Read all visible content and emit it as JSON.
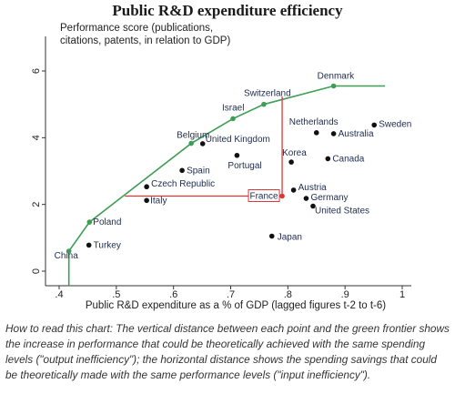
{
  "chart_data": {
    "type": "scatter",
    "title": "Public R&D expenditure efficiency",
    "ylabel": "Performance score (publications, citations, patents, in relation to GDP)",
    "xlabel": "Public R&D expenditure as a % of GDP (lagged figures t-2 to t-6)",
    "xlim": [
      0.4,
      1.0
    ],
    "ylim": [
      0,
      6
    ],
    "x_ticks": [
      ".4",
      ".5",
      ".6",
      ".7",
      ".8",
      ".9",
      "1"
    ],
    "y_ticks": [
      "0",
      "2",
      "4",
      "6"
    ],
    "colors": {
      "frontier": "#3e9e55",
      "country": "#111111",
      "highlight": "#d9383a"
    },
    "frontier": [
      {
        "label": "China",
        "x": 0.417,
        "y": 0.6
      },
      {
        "label": "Poland",
        "x": 0.453,
        "y": 1.47
      },
      {
        "label": "Belgium",
        "x": 0.631,
        "y": 3.83
      },
      {
        "label": "Israel",
        "x": 0.704,
        "y": 4.57
      },
      {
        "label": "Switzerland",
        "x": 0.758,
        "y": 5.0
      },
      {
        "label": "Denmark",
        "x": 0.88,
        "y": 5.55
      }
    ],
    "countries": [
      {
        "label": "Turkey",
        "x": 0.452,
        "y": 0.78
      },
      {
        "label": "Czech Republic",
        "x": 0.553,
        "y": 2.53
      },
      {
        "label": "Italy",
        "x": 0.553,
        "y": 2.12
      },
      {
        "label": "Spain",
        "x": 0.615,
        "y": 3.02
      },
      {
        "label": "United Kingdom",
        "x": 0.651,
        "y": 3.82
      },
      {
        "label": "Portugal",
        "x": 0.711,
        "y": 3.47
      },
      {
        "label": "Korea",
        "x": 0.806,
        "y": 3.27
      },
      {
        "label": "Netherlands",
        "x": 0.85,
        "y": 4.15
      },
      {
        "label": "Australia",
        "x": 0.88,
        "y": 4.12
      },
      {
        "label": "Sweden",
        "x": 0.951,
        "y": 4.38
      },
      {
        "label": "Canada",
        "x": 0.87,
        "y": 3.37
      },
      {
        "label": "Austria",
        "x": 0.81,
        "y": 2.43
      },
      {
        "label": "Germany",
        "x": 0.832,
        "y": 2.18
      },
      {
        "label": "United States",
        "x": 0.844,
        "y": 1.95
      },
      {
        "label": "Japan",
        "x": 0.772,
        "y": 1.05
      }
    ],
    "highlight": {
      "label": "France",
      "x": 0.79,
      "y": 2.25,
      "frontier_y": 5.23,
      "frontier_x": 0.515
    }
  },
  "caption": "How to read this chart: The vertical distance between each point and the green frontier shows the increase in performance that could be theoretically achieved with the same spending levels (\"output inefficiency\"); the horizontal distance shows the spending savings that could be theoretically made with the same performance levels (\"input inefficiency\")."
}
